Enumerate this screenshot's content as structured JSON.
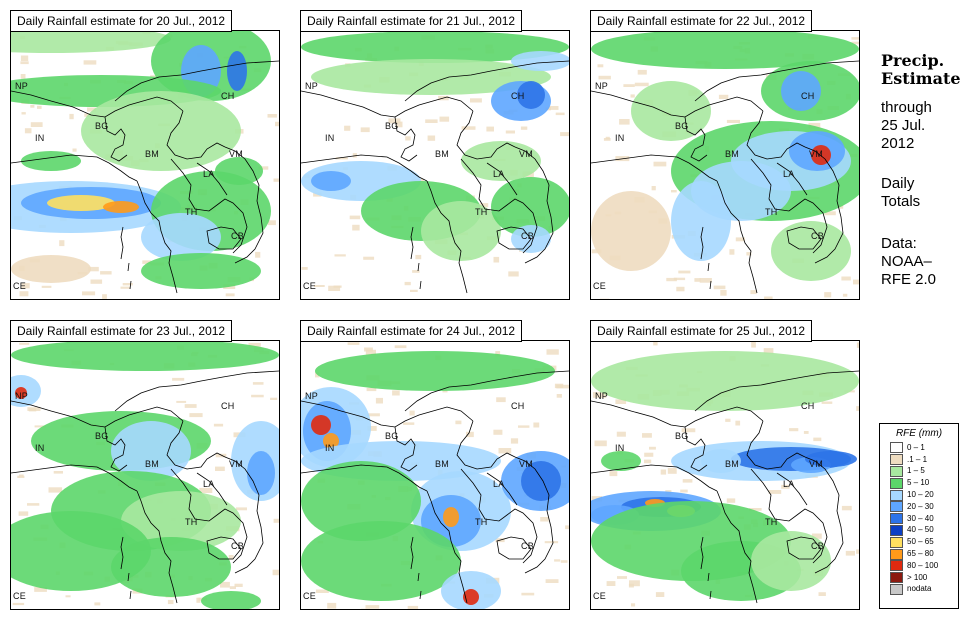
{
  "panels": [
    {
      "title": "Daily Rainfall estimate for  20 Jul., 2012"
    },
    {
      "title": "Daily Rainfall estimate for  21 Jul., 2012"
    },
    {
      "title": "Daily Rainfall estimate for  22 Jul., 2012"
    },
    {
      "title": "Daily Rainfall estimate for  23 Jul., 2012"
    },
    {
      "title": "Daily Rainfall estimate for  24 Jul., 2012"
    },
    {
      "title": "Daily Rainfall estimate for  25 Jul., 2012"
    }
  ],
  "region_labels": {
    "np": "NP",
    "ch": "CH",
    "in": "IN",
    "bg": "BG",
    "bm": "BM",
    "vm": "VM",
    "la": "LA",
    "th": "TH",
    "cb": "CB",
    "ce": "CE"
  },
  "sidebar": {
    "title_line1": "Precip.",
    "title_line2": "Estimate",
    "through": "through",
    "date_line1": "25 Jul.",
    "date_line2": "2012",
    "daily_line1": "Daily",
    "daily_line2": "Totals",
    "data_line1": "Data:",
    "data_line2": "NOAA–",
    "data_line3": "RFE 2.0"
  },
  "legend": {
    "title": "RFE (mm)",
    "items": [
      {
        "label": "0 – 1",
        "color": "#ffffff"
      },
      {
        "label": ".1 – 1",
        "color": "#eedcc0"
      },
      {
        "label": "1 – 5",
        "color": "#a8e8a0"
      },
      {
        "label": "5 – 10",
        "color": "#5cd66a"
      },
      {
        "label": "10 – 20",
        "color": "#a6d8ff"
      },
      {
        "label": "20 – 30",
        "color": "#5ea6ff"
      },
      {
        "label": "30 – 40",
        "color": "#2d74e8"
      },
      {
        "label": "40 – 50",
        "color": "#0c3fc4"
      },
      {
        "label": "50 – 65",
        "color": "#ffe060"
      },
      {
        "label": "65 – 80",
        "color": "#ff9a1a"
      },
      {
        "label": "80 – 100",
        "color": "#e02a10"
      },
      {
        "label": "> 100",
        "color": "#8b1a10"
      },
      {
        "label": "nodata",
        "color": "#c8c8c8"
      }
    ]
  }
}
